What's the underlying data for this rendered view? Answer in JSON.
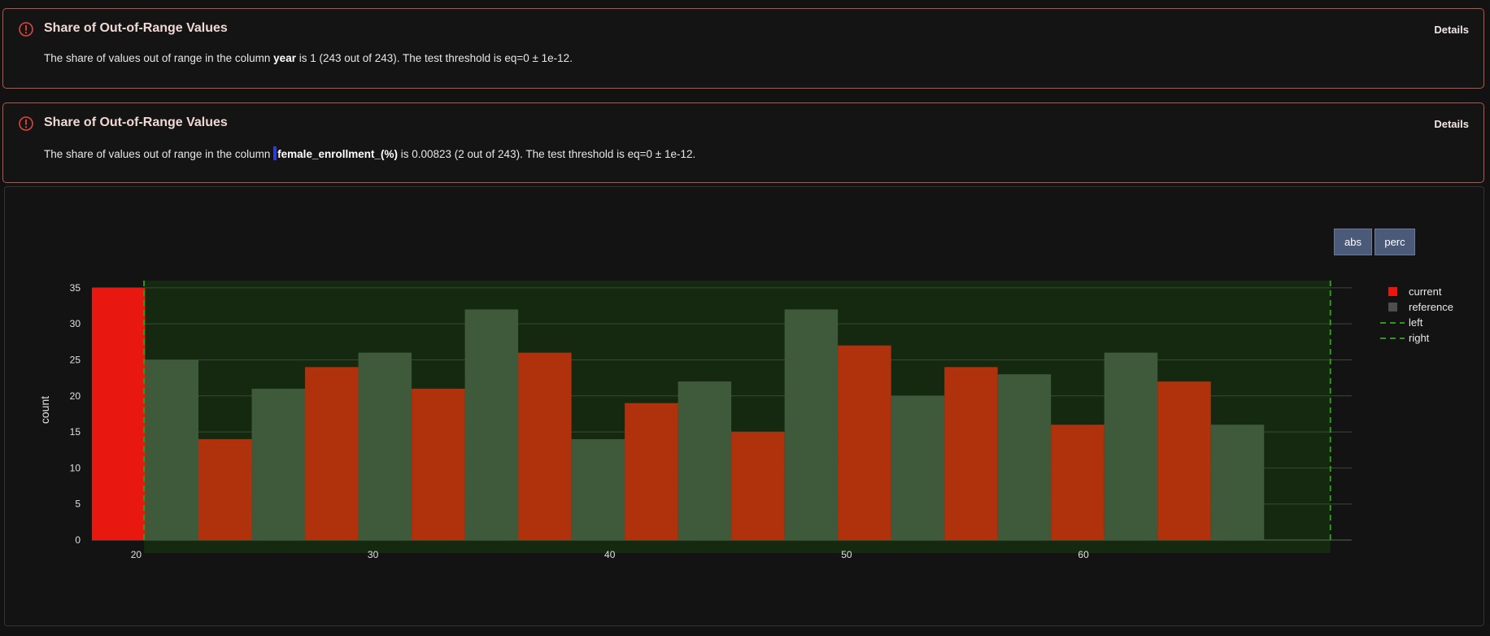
{
  "alerts": [
    {
      "title": "Share of Out-of-Range Values",
      "details_label": "Details",
      "msg_pre": "The share of values out of range in the column ",
      "column": "year",
      "msg_post": " is 1 (243 out of 243). The test threshold is eq=0 ± 1e-12."
    },
    {
      "title": "Share of Out-of-Range Values",
      "details_label": "Details",
      "msg_pre": "The share of values out of range in the column ",
      "column": "female_enrollment_(%)",
      "msg_post": " is 0.00823 (2 out of 243). The test threshold is eq=0 ± 1e-12."
    }
  ],
  "toggle": {
    "abs_label": "abs",
    "perc_label": "perc"
  },
  "colors": {
    "alert_border": "#b8554a",
    "current_in_range": "#b0320c",
    "current_out_of_range": "#e8170f",
    "reference": "#3f5a3a",
    "range_band": "#14290f",
    "range_line": "#2a9a1a"
  },
  "chart_data": {
    "type": "bar",
    "ylabel": "count",
    "ylim": [
      0,
      36
    ],
    "yticks": [
      0,
      5,
      10,
      15,
      20,
      25,
      30,
      35
    ],
    "xticks": [
      20,
      30,
      40,
      50,
      60
    ],
    "bin_width": 4.5,
    "bin_starts": [
      18.2,
      22.7,
      27.2,
      31.7,
      36.2,
      40.7,
      45.2,
      49.7,
      54.2,
      58.7,
      63.2
    ],
    "series": [
      {
        "name": "current",
        "values": [
          35,
          14,
          24,
          21,
          26,
          19,
          15,
          27,
          24,
          16,
          22
        ]
      },
      {
        "name": "reference",
        "values": [
          25,
          21,
          26,
          32,
          14,
          22,
          32,
          20,
          23,
          26,
          16
        ]
      }
    ],
    "range": {
      "left": 20.4,
      "right": 70.5
    },
    "legend": [
      "current",
      "reference",
      "left",
      "right"
    ],
    "legend_position": "top-right",
    "grid": true
  }
}
